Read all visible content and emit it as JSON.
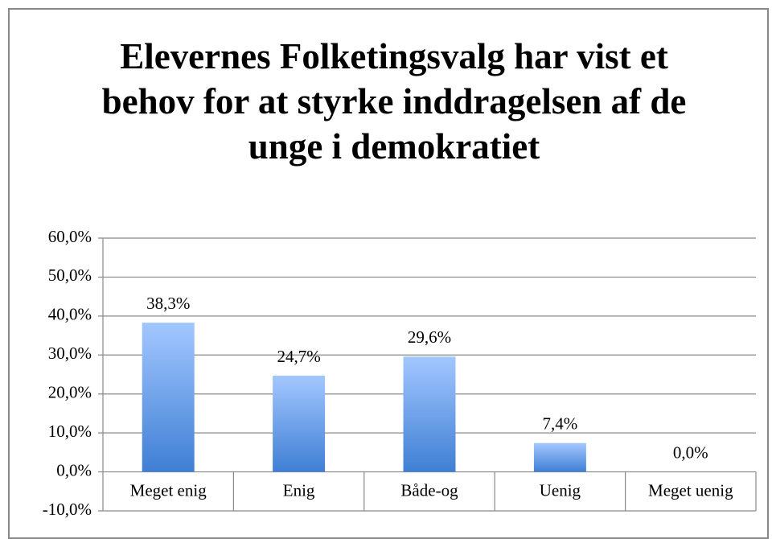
{
  "chart_data": {
    "type": "bar",
    "title": "Elevernes Folketingsvalg har vist et behov for at styrke inddragelsen af de unge i demokratiet",
    "categories": [
      "Meget enig",
      "Enig",
      "Både-og",
      "Uenig",
      "Meget uenig"
    ],
    "values": [
      38.3,
      24.7,
      29.6,
      7.4,
      0.0
    ],
    "value_labels": [
      "38,3%",
      "24,7%",
      "29,6%",
      "7,4%",
      "0,0%"
    ],
    "color": "#4a86d8",
    "ylim": [
      -10,
      60
    ],
    "yticks": [
      {
        "value": -10,
        "label": "-10,0%"
      },
      {
        "value": 0,
        "label": "0,0%"
      },
      {
        "value": 10,
        "label": "10,0%"
      },
      {
        "value": 20,
        "label": "20,0%"
      },
      {
        "value": 30,
        "label": "30,0%"
      },
      {
        "value": 40,
        "label": "40,0%"
      },
      {
        "value": 50,
        "label": "50,0%"
      },
      {
        "value": 60,
        "label": "60,0%"
      }
    ],
    "grid": true
  }
}
